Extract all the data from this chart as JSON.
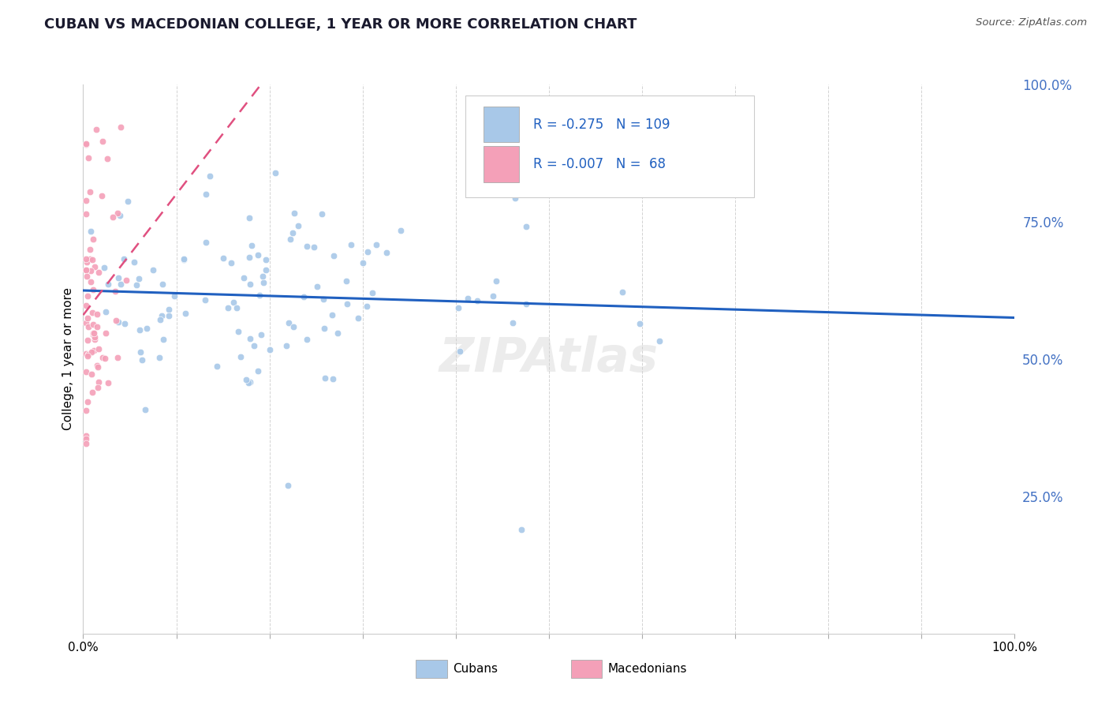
{
  "title": "CUBAN VS MACEDONIAN COLLEGE, 1 YEAR OR MORE CORRELATION CHART",
  "source": "Source: ZipAtlas.com",
  "ylabel": "College, 1 year or more",
  "legend_label1": "Cubans",
  "legend_label2": "Macedonians",
  "r1": -0.275,
  "n1": 109,
  "r2": -0.007,
  "n2": 68,
  "blue_color": "#a8c8e8",
  "pink_color": "#f4a0b8",
  "blue_line_color": "#2060c0",
  "pink_line_color": "#e05080",
  "title_color": "#1a1a2e",
  "legend_text_color": "#2060c0",
  "right_axis_color": "#4472c4",
  "grid_color": "#c0c0c0",
  "right_ytick_labels": [
    "100.0%",
    "75.0%",
    "50.0%",
    "25.0%"
  ],
  "right_ytick_vals": [
    1.0,
    0.75,
    0.5,
    0.25
  ],
  "xlim": [
    0.0,
    1.0
  ],
  "ylim": [
    0.0,
    1.0
  ],
  "seed1": 12,
  "seed2": 77
}
